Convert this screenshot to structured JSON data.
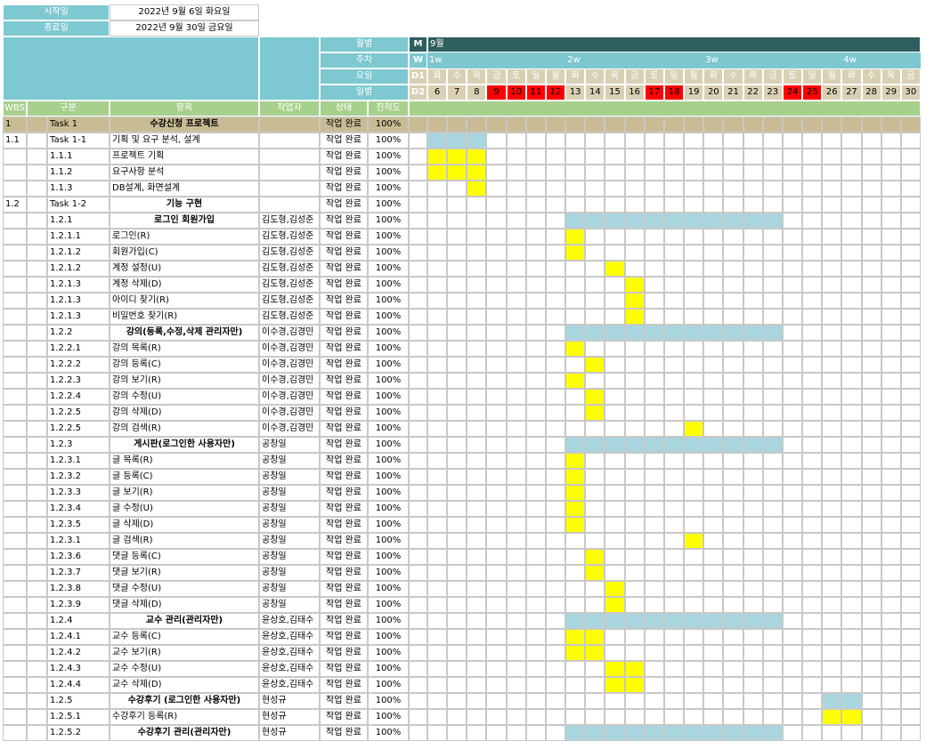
{
  "header": {
    "start_label": "시작일",
    "start_value": "2022년 9월 6일 화요일",
    "end_label": "종료일",
    "end_value": "2022년 9월 30일 금요일",
    "month_label": "월별",
    "week_label": "주차",
    "dow_label": "요일",
    "day_label": "일별",
    "m_code": "M",
    "w_code": "W",
    "d1_code": "D1",
    "d2_code": "D2",
    "month_value": "9월"
  },
  "columns": {
    "wbs": "WBS",
    "category": "구분",
    "item": "항목",
    "worker": "작업자",
    "status": "상태",
    "progress": "진척도"
  },
  "weeks": [
    {
      "label": "1w",
      "start": 0
    },
    {
      "label": "2w",
      "start": 7
    },
    {
      "label": "3w",
      "start": 14
    },
    {
      "label": "4w",
      "start": 21
    }
  ],
  "days": [
    {
      "d": "6",
      "w": "화",
      "h": false
    },
    {
      "d": "7",
      "w": "수",
      "h": false
    },
    {
      "d": "8",
      "w": "목",
      "h": false
    },
    {
      "d": "9",
      "w": "금",
      "h": true
    },
    {
      "d": "10",
      "w": "토",
      "h": true
    },
    {
      "d": "11",
      "w": "일",
      "h": true
    },
    {
      "d": "12",
      "w": "월",
      "h": true
    },
    {
      "d": "13",
      "w": "화",
      "h": false
    },
    {
      "d": "14",
      "w": "수",
      "h": false
    },
    {
      "d": "15",
      "w": "목",
      "h": false
    },
    {
      "d": "16",
      "w": "금",
      "h": false
    },
    {
      "d": "17",
      "w": "토",
      "h": true
    },
    {
      "d": "18",
      "w": "일",
      "h": true
    },
    {
      "d": "19",
      "w": "월",
      "h": false
    },
    {
      "d": "20",
      "w": "화",
      "h": false
    },
    {
      "d": "21",
      "w": "수",
      "h": false
    },
    {
      "d": "22",
      "w": "목",
      "h": false
    },
    {
      "d": "23",
      "w": "금",
      "h": false
    },
    {
      "d": "24",
      "w": "토",
      "h": true
    },
    {
      "d": "25",
      "w": "일",
      "h": true
    },
    {
      "d": "26",
      "w": "월",
      "h": false
    },
    {
      "d": "27",
      "w": "화",
      "h": false
    },
    {
      "d": "28",
      "w": "수",
      "h": false
    },
    {
      "d": "29",
      "w": "목",
      "h": false
    },
    {
      "d": "30",
      "w": "금",
      "h": false
    }
  ],
  "colors": {
    "header_teal": "#7dc8d1",
    "dark_teal": "#2e5e5e",
    "week_teal": "#7fc7cf",
    "day_beige": "#d9d0b4",
    "holiday_red": "#ff0000",
    "green_row": "#a8d08d",
    "task_row": "#c9bc94",
    "bar_blue": "#a9d5de",
    "bar_yellow": "#ffff00",
    "grid_line": "#c8c8c8"
  },
  "rows": [
    {
      "wbs": "1",
      "cat": "Task 1",
      "item": "수강신청 프로젝트",
      "worker": "",
      "status": "작업 완료",
      "progress": "100%",
      "type": "task",
      "bar": []
    },
    {
      "wbs": "1.1",
      "cat": "Task 1-1",
      "item": "기획 및 요구 분석, 설계",
      "worker": "",
      "status": "작업 완료",
      "progress": "100%",
      "type": "normal",
      "bar": [
        "blue",
        0,
        3
      ]
    },
    {
      "wbs": "",
      "cat": "1.1.1",
      "item": "프로젝트 기획",
      "worker": "",
      "status": "작업 완료",
      "progress": "100%",
      "type": "normal",
      "bar": [
        "yellow",
        0,
        3
      ]
    },
    {
      "wbs": "",
      "cat": "1.1.2",
      "item": "요구사항 분석",
      "worker": "",
      "status": "작업 완료",
      "progress": "100%",
      "type": "normal",
      "bar": [
        "yellow",
        0,
        3
      ]
    },
    {
      "wbs": "",
      "cat": "1.1.3",
      "item": "DB설계, 화면설계",
      "worker": "",
      "status": "작업 완료",
      "progress": "100%",
      "type": "normal",
      "bar": [
        "yellow",
        2,
        1
      ]
    },
    {
      "wbs": "1.2",
      "cat": "Task 1-2",
      "item": "기능 구현",
      "worker": "",
      "status": "작업 완료",
      "progress": "100%",
      "type": "center",
      "bar": []
    },
    {
      "wbs": "",
      "cat": "1.2.1",
      "item": "로그인 회원가입",
      "worker": "김도형,김성준",
      "status": "작업 완료",
      "progress": "100%",
      "type": "center",
      "bar": [
        "blue",
        7,
        11
      ]
    },
    {
      "wbs": "",
      "cat": "1.2.1.1",
      "item": "로그인(R)",
      "worker": "김도형,김성준",
      "status": "작업 완료",
      "progress": "100%",
      "type": "normal",
      "bar": [
        "yellow",
        7,
        1
      ]
    },
    {
      "wbs": "",
      "cat": "1.2.1.2",
      "item": "회원가입(C)",
      "worker": "김도형,김성준",
      "status": "작업 완료",
      "progress": "100%",
      "type": "normal",
      "bar": [
        "yellow",
        7,
        1
      ]
    },
    {
      "wbs": "",
      "cat": "1.2.1.2",
      "item": "계정 설정(U)",
      "worker": "김도형,김성준",
      "status": "작업 완료",
      "progress": "100%",
      "type": "normal",
      "bar": [
        "yellow",
        9,
        1
      ]
    },
    {
      "wbs": "",
      "cat": "1.2.1.3",
      "item": "계정 삭제(D)",
      "worker": "김도형,김성준",
      "status": "작업 완료",
      "progress": "100%",
      "type": "normal",
      "bar": [
        "yellow",
        10,
        1
      ]
    },
    {
      "wbs": "",
      "cat": "1.2.1.3",
      "item": "아이디 찾기(R)",
      "worker": "김도형,김성준",
      "status": "작업 완료",
      "progress": "100%",
      "type": "normal",
      "bar": [
        "yellow",
        10,
        1
      ]
    },
    {
      "wbs": "",
      "cat": "1.2.1.3",
      "item": "비밀번호 찾기(R)",
      "worker": "김도형,김성준",
      "status": "작업 완료",
      "progress": "100%",
      "type": "normal",
      "bar": [
        "yellow",
        10,
        1
      ]
    },
    {
      "wbs": "",
      "cat": "1.2.2",
      "item": "강의(등록,수정,삭제 관리자만)",
      "worker": "이수경,김경민",
      "status": "작업 완료",
      "progress": "100%",
      "type": "center",
      "bar": [
        "blue",
        7,
        11
      ]
    },
    {
      "wbs": "",
      "cat": "1.2.2.1",
      "item": "강의 목록(R)",
      "worker": "이수경,김경민",
      "status": "작업 완료",
      "progress": "100%",
      "type": "normal",
      "bar": [
        "yellow",
        7,
        1
      ]
    },
    {
      "wbs": "",
      "cat": "1.2.2.2",
      "item": "강의 등록(C)",
      "worker": "이수경,김경민",
      "status": "작업 완료",
      "progress": "100%",
      "type": "normal",
      "bar": [
        "yellow",
        8,
        1
      ]
    },
    {
      "wbs": "",
      "cat": "1.2.2.3",
      "item": "강의 보기(R)",
      "worker": "이수경,김경민",
      "status": "작업 완료",
      "progress": "100%",
      "type": "normal",
      "bar": [
        "yellow",
        7,
        1
      ]
    },
    {
      "wbs": "",
      "cat": "1.2.2.4",
      "item": "강의 수정(U)",
      "worker": "이수경,김경민",
      "status": "작업 완료",
      "progress": "100%",
      "type": "normal",
      "bar": [
        "yellow",
        8,
        1
      ]
    },
    {
      "wbs": "",
      "cat": "1.2.2.5",
      "item": "강의 삭제(D)",
      "worker": "이수경,김경민",
      "status": "작업 완료",
      "progress": "100%",
      "type": "normal",
      "bar": [
        "yellow",
        8,
        1
      ]
    },
    {
      "wbs": "",
      "cat": "1.2.2.5",
      "item": "강의 검색(R)",
      "worker": "이수경,김경민",
      "status": "작업 완료",
      "progress": "100%",
      "type": "normal",
      "bar": [
        "yellow",
        13,
        1
      ]
    },
    {
      "wbs": "",
      "cat": "1.2.3",
      "item": "게시판(로그인한 사용자만)",
      "worker": "공창일",
      "status": "작업 완료",
      "progress": "100%",
      "type": "center",
      "bar": [
        "blue",
        7,
        11
      ]
    },
    {
      "wbs": "",
      "cat": "1.2.3.1",
      "item": "글 목록(R)",
      "worker": "공창일",
      "status": "작업 완료",
      "progress": "100%",
      "type": "normal",
      "bar": [
        "yellow",
        7,
        1
      ]
    },
    {
      "wbs": "",
      "cat": "1.2.3.2",
      "item": "글 등록(C)",
      "worker": "공창일",
      "status": "작업 완료",
      "progress": "100%",
      "type": "normal",
      "bar": [
        "yellow",
        7,
        1
      ]
    },
    {
      "wbs": "",
      "cat": "1.2.3.3",
      "item": "글 보기(R)",
      "worker": "공창일",
      "status": "작업 완료",
      "progress": "100%",
      "type": "normal",
      "bar": [
        "yellow",
        7,
        1
      ]
    },
    {
      "wbs": "",
      "cat": "1.2.3.4",
      "item": "글 수정(U)",
      "worker": "공창일",
      "status": "작업 완료",
      "progress": "100%",
      "type": "normal",
      "bar": [
        "yellow",
        7,
        1
      ]
    },
    {
      "wbs": "",
      "cat": "1.2.3.5",
      "item": "글 삭제(D)",
      "worker": "공창일",
      "status": "작업 완료",
      "progress": "100%",
      "type": "normal",
      "bar": [
        "yellow",
        7,
        1
      ]
    },
    {
      "wbs": "",
      "cat": "1.2.3.1",
      "item": "글 검색(R)",
      "worker": "공창일",
      "status": "작업 완료",
      "progress": "100%",
      "type": "normal",
      "bar": [
        "yellow",
        13,
        1
      ]
    },
    {
      "wbs": "",
      "cat": "1.2.3.6",
      "item": "댓글 등록(C)",
      "worker": "공창일",
      "status": "작업 완료",
      "progress": "100%",
      "type": "normal",
      "bar": [
        "yellow",
        8,
        1
      ]
    },
    {
      "wbs": "",
      "cat": "1.2.3.7",
      "item": "댓글 보기(R)",
      "worker": "공창일",
      "status": "작업 완료",
      "progress": "100%",
      "type": "normal",
      "bar": [
        "yellow",
        8,
        1
      ]
    },
    {
      "wbs": "",
      "cat": "1.2.3.8",
      "item": "댓글 수정(U)",
      "worker": "공창일",
      "status": "작업 완료",
      "progress": "100%",
      "type": "normal",
      "bar": [
        "yellow",
        9,
        1
      ]
    },
    {
      "wbs": "",
      "cat": "1.2.3.9",
      "item": "댓글 삭제(D)",
      "worker": "공창일",
      "status": "작업 완료",
      "progress": "100%",
      "type": "normal",
      "bar": [
        "yellow",
        9,
        1
      ]
    },
    {
      "wbs": "",
      "cat": "1.2.4",
      "item": "교수 관리(관리자만)",
      "worker": "윤상호,김태수",
      "status": "작업 완료",
      "progress": "100%",
      "type": "center",
      "bar": [
        "blue",
        7,
        11
      ]
    },
    {
      "wbs": "",
      "cat": "1.2.4.1",
      "item": "교수 등록(C)",
      "worker": "윤상호,김태수",
      "status": "작업 완료",
      "progress": "100%",
      "type": "normal",
      "bar": [
        "yellow",
        7,
        2
      ]
    },
    {
      "wbs": "",
      "cat": "1.2.4.2",
      "item": "교수 보기(R)",
      "worker": "윤상호,김태수",
      "status": "작업 완료",
      "progress": "100%",
      "type": "normal",
      "bar": [
        "yellow",
        7,
        2
      ]
    },
    {
      "wbs": "",
      "cat": "1.2.4.3",
      "item": "교수 수정(U)",
      "worker": "윤상호,김태수",
      "status": "작업 완료",
      "progress": "100%",
      "type": "normal",
      "bar": [
        "yellow",
        9,
        2
      ]
    },
    {
      "wbs": "",
      "cat": "1.2.4.4",
      "item": "교수 삭제(D)",
      "worker": "윤상호,김태수",
      "status": "작업 완료",
      "progress": "100%",
      "type": "normal",
      "bar": [
        "yellow",
        9,
        2
      ]
    },
    {
      "wbs": "",
      "cat": "1.2.5",
      "item": "수강후기 (로그인한 사용자만)",
      "worker": "현성규",
      "status": "작업 완료",
      "progress": "100%",
      "type": "center",
      "bar": [
        "blue",
        20,
        2
      ]
    },
    {
      "wbs": "",
      "cat": "1.2.5.1",
      "item": "수강후기 등록(R)",
      "worker": "현성규",
      "status": "작업 완료",
      "progress": "100%",
      "type": "normal",
      "bar": [
        "yellow",
        20,
        2
      ]
    },
    {
      "wbs": "",
      "cat": "1.2.5.2",
      "item": "수강후기 관리(관리자만)",
      "worker": "현성규",
      "status": "작업 완료",
      "progress": "100%",
      "type": "center",
      "bar": [
        "blue",
        7,
        11
      ]
    }
  ]
}
